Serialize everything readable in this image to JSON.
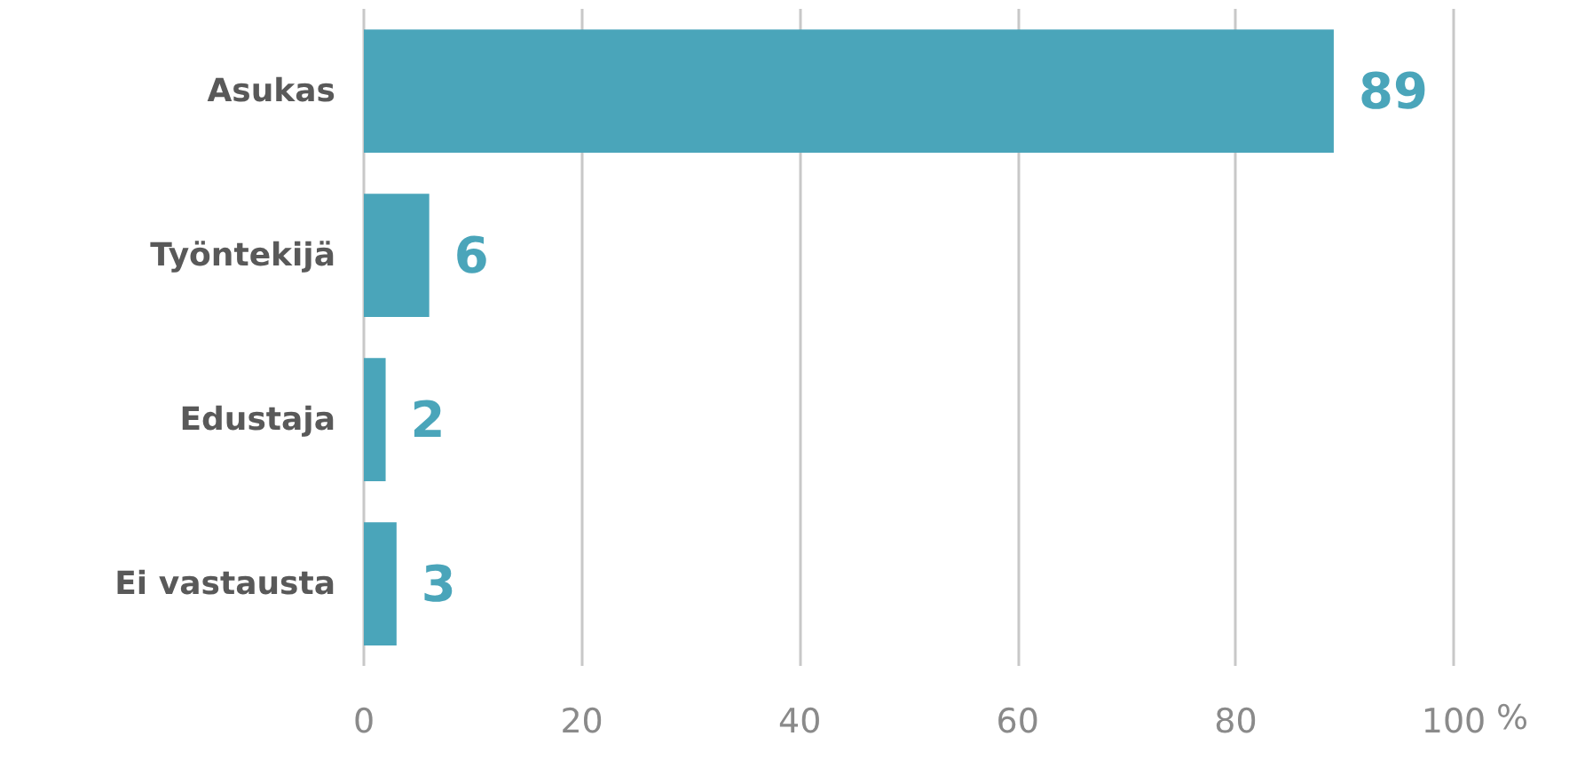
{
  "chart_data": {
    "type": "bar",
    "orientation": "horizontal",
    "categories": [
      "Asukas",
      "Työntekijä",
      "Edustaja",
      "Ei vastausta"
    ],
    "values": [
      89,
      6,
      2,
      3
    ],
    "color": "#4aa5ba",
    "xlim": [
      0,
      100
    ],
    "xticks": [
      0,
      20,
      40,
      60,
      80,
      100
    ],
    "xlabel": "%",
    "grid": "x",
    "data_labels": true
  }
}
